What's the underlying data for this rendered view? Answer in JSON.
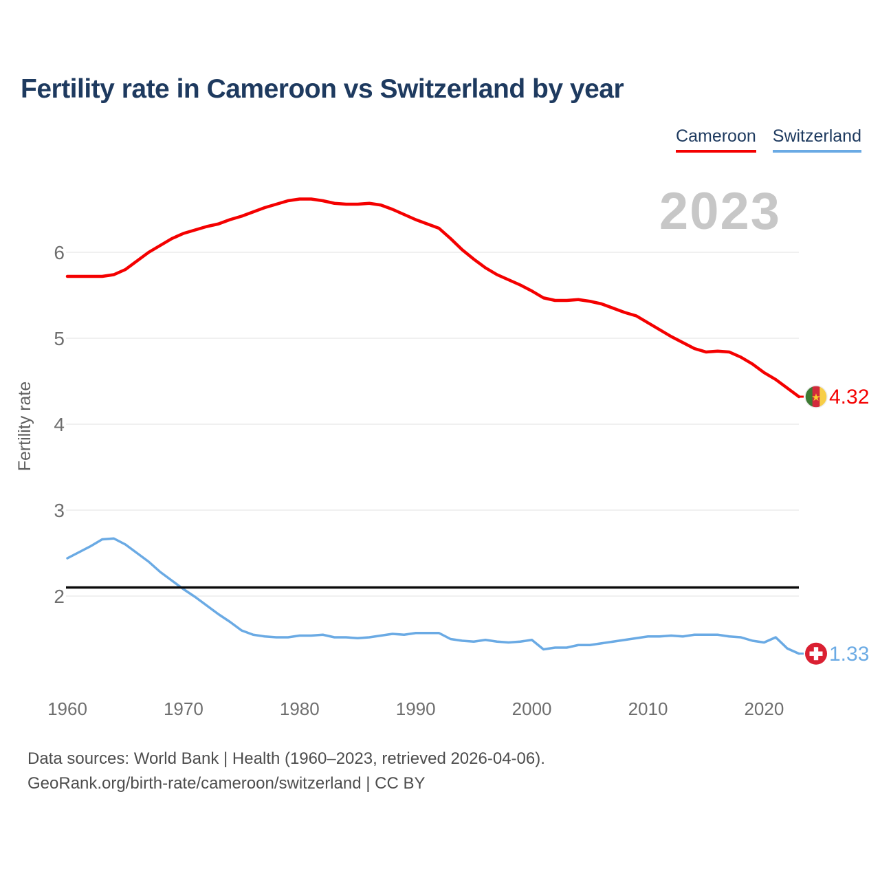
{
  "title": "Fertility rate in Cameroon vs Switzerland by year",
  "watermark": "2023",
  "legend": [
    {
      "label": "Cameroon",
      "color": "#f40000"
    },
    {
      "label": "Switzerland",
      "color": "#6aaae4"
    }
  ],
  "footer": {
    "line1": "Data sources: World Bank | Health (1960–2023, retrieved 2026-04-06).",
    "line2": "GeoRank.org/birth-rate/cameroon/switzerland | CC BY"
  },
  "colors": {
    "cameroon_red": "#f40000",
    "switzerland_blue": "#6aaae4",
    "title_navy": "#1e3a5f",
    "gridline": "#ebebeb",
    "tick_text": "#6e6e6e",
    "axis_title_text": "#5e5e5e",
    "watermark_gray": "#c7c7c7",
    "replacement_line_black": "#0a0a0a",
    "flag_cameroon_green": "#3e7a33",
    "flag_cameroon_red": "#d12a3c",
    "flag_cameroon_yellow": "#f7ce47",
    "flag_cameroon_star": "#fad02c",
    "flag_switzerland_red": "#da2032",
    "flag_switzerland_cross": "#ffffff"
  },
  "chart_data": {
    "type": "line",
    "title": "Fertility rate in Cameroon vs Switzerland by year",
    "xlabel": "",
    "ylabel": "Fertility rate",
    "grid": true,
    "legend_position": "top-right",
    "x_ticks": [
      1960,
      1970,
      1980,
      1990,
      2000,
      2010,
      2020
    ],
    "y_ticks": [
      2,
      3,
      4,
      5,
      6
    ],
    "xlim": [
      1960,
      2023
    ],
    "ylim": [
      1.1,
      7.0
    ],
    "replacement_line": {
      "value": 2.1,
      "color": "#0a0a0a"
    },
    "x": [
      1960,
      1961,
      1962,
      1963,
      1964,
      1965,
      1966,
      1967,
      1968,
      1969,
      1970,
      1971,
      1972,
      1973,
      1974,
      1975,
      1976,
      1977,
      1978,
      1979,
      1980,
      1981,
      1982,
      1983,
      1984,
      1985,
      1986,
      1987,
      1988,
      1989,
      1990,
      1991,
      1992,
      1993,
      1994,
      1995,
      1996,
      1997,
      1998,
      1999,
      2000,
      2001,
      2002,
      2003,
      2004,
      2005,
      2006,
      2007,
      2008,
      2009,
      2010,
      2011,
      2012,
      2013,
      2014,
      2015,
      2016,
      2017,
      2018,
      2019,
      2020,
      2021,
      2022,
      2023
    ],
    "series": [
      {
        "name": "Cameroon",
        "color": "#f40000",
        "end_label": "4.32",
        "flag": "cameroon",
        "values": [
          5.72,
          5.72,
          5.72,
          5.72,
          5.74,
          5.8,
          5.9,
          6.0,
          6.08,
          6.16,
          6.22,
          6.26,
          6.3,
          6.33,
          6.38,
          6.42,
          6.47,
          6.52,
          6.56,
          6.6,
          6.62,
          6.62,
          6.6,
          6.57,
          6.56,
          6.56,
          6.57,
          6.55,
          6.5,
          6.44,
          6.38,
          6.33,
          6.28,
          6.16,
          6.03,
          5.92,
          5.82,
          5.74,
          5.68,
          5.62,
          5.55,
          5.47,
          5.44,
          5.44,
          5.45,
          5.43,
          5.4,
          5.35,
          5.3,
          5.26,
          5.18,
          5.1,
          5.02,
          4.95,
          4.88,
          4.84,
          4.85,
          4.84,
          4.78,
          4.7,
          4.6,
          4.52,
          4.42,
          4.32
        ]
      },
      {
        "name": "Switzerland",
        "color": "#6aaae4",
        "end_label": "1.33",
        "flag": "switzerland",
        "values": [
          2.44,
          2.51,
          2.58,
          2.66,
          2.67,
          2.6,
          2.5,
          2.4,
          2.28,
          2.18,
          2.08,
          1.99,
          1.89,
          1.79,
          1.7,
          1.6,
          1.55,
          1.53,
          1.52,
          1.52,
          1.54,
          1.54,
          1.55,
          1.52,
          1.52,
          1.51,
          1.52,
          1.54,
          1.56,
          1.55,
          1.57,
          1.57,
          1.57,
          1.5,
          1.48,
          1.47,
          1.49,
          1.47,
          1.46,
          1.47,
          1.49,
          1.38,
          1.4,
          1.4,
          1.43,
          1.43,
          1.45,
          1.47,
          1.49,
          1.51,
          1.53,
          1.53,
          1.54,
          1.53,
          1.55,
          1.55,
          1.55,
          1.53,
          1.52,
          1.48,
          1.46,
          1.52,
          1.39,
          1.33
        ]
      }
    ]
  }
}
